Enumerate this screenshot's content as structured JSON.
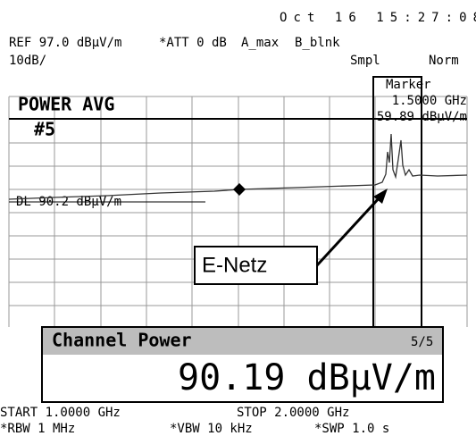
{
  "header": {
    "datetime": "Oct 16 15:27:08",
    "ref": "REF 97.0 dBμV/m",
    "att": "*ATT 0 dB",
    "trace_a": "A_max",
    "trace_b": "B_blnk",
    "scale": "10dB/",
    "detector": "Smpl",
    "mode": "Norm"
  },
  "screen": {
    "title": "POWER AVG",
    "count": "#5",
    "display_line": "DL 90.2 dBμV/m",
    "marker": {
      "label": "Marker",
      "frequency": "1.5000 GHz",
      "level": "59.89 dBμV/m"
    },
    "annotation": "E-Netz"
  },
  "channel_power": {
    "title": "Channel Power",
    "page": "5/5",
    "value": "90.19 dBμV/m"
  },
  "footer": {
    "start": "START 1.0000 GHz",
    "stop": "STOP 2.0000 GHz",
    "rbw": "*RBW 1 MHz",
    "vbw": "*VBW 10 kHz",
    "swp": "*SWP 1.0 s"
  }
}
